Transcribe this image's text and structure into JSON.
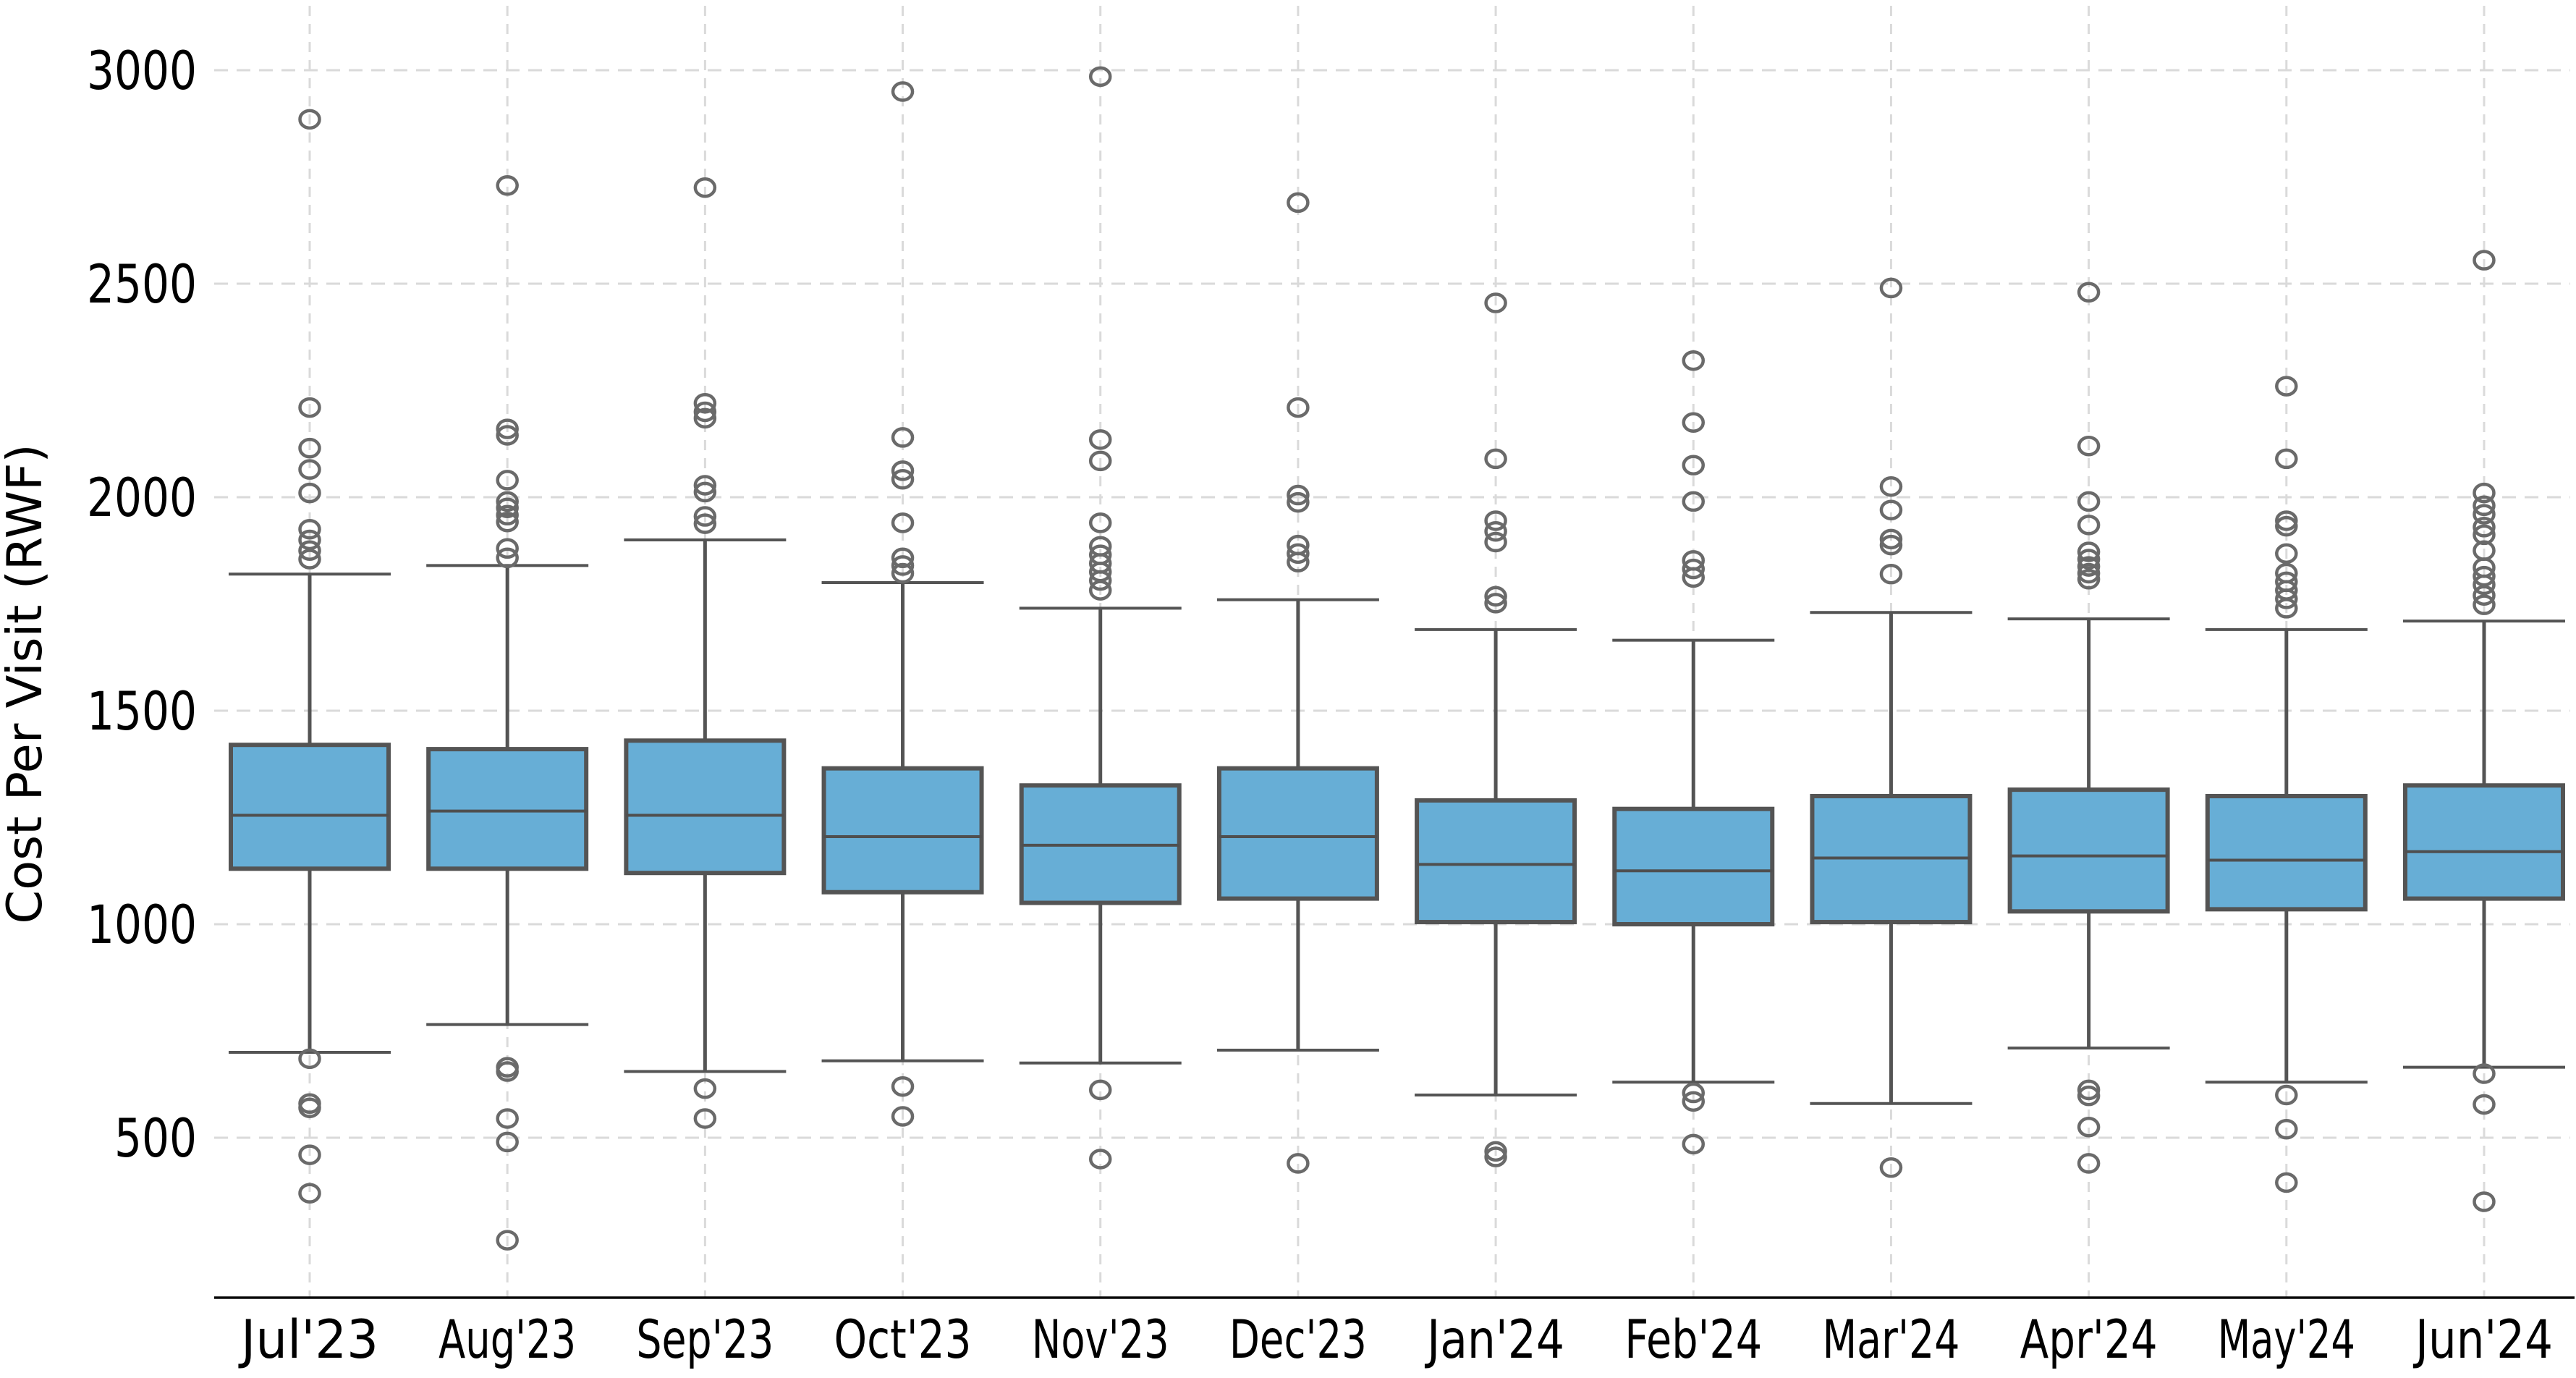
{
  "chart_data": {
    "type": "box",
    "title": "",
    "xlabel": "",
    "ylabel": "Cost Per Visit (RWF)",
    "ylim": [
      120,
      3165
    ],
    "yticks": [
      3000,
      2500,
      2000,
      1500,
      1000,
      500
    ],
    "grid": {
      "horizontal": true,
      "vertical": true,
      "style": "dashed",
      "on": true
    },
    "legend": {
      "visible": false
    },
    "categories": [
      "Jul'23",
      "Aug'23",
      "Sep'23",
      "Oct'23",
      "Nov'23",
      "Dec'23",
      "Jan'24",
      "Feb'24",
      "Mar'24",
      "Apr'24",
      "May'24",
      "Jun'24"
    ],
    "series": [
      {
        "category": "Jul'23",
        "whisker_low": 700,
        "q1": 1130,
        "median": 1255,
        "q3": 1420,
        "whisker_high": 1820,
        "outliers_high": [
          2885,
          2210,
          2115,
          2065,
          2010,
          1925,
          1900,
          1875,
          1855
        ],
        "outliers_low": [
          685,
          580,
          570,
          460,
          370
        ]
      },
      {
        "category": "Aug'23",
        "whisker_low": 765,
        "q1": 1130,
        "median": 1265,
        "q3": 1410,
        "whisker_high": 1840,
        "outliers_high": [
          2730,
          2160,
          2145,
          2040,
          1990,
          1975,
          1958,
          1942,
          1880,
          1858
        ],
        "outliers_low": [
          665,
          655,
          545,
          490,
          260
        ]
      },
      {
        "category": "Sep'23",
        "whisker_low": 655,
        "q1": 1120,
        "median": 1255,
        "q3": 1430,
        "whisker_high": 1900,
        "outliers_high": [
          2725,
          2220,
          2200,
          2185,
          2028,
          2012,
          1955,
          1938
        ],
        "outliers_low": [
          615,
          545
        ]
      },
      {
        "category": "Oct'23",
        "whisker_low": 680,
        "q1": 1075,
        "median": 1205,
        "q3": 1365,
        "whisker_high": 1800,
        "outliers_high": [
          2950,
          2140,
          2062,
          2042,
          1940,
          1858,
          1840,
          1822
        ],
        "outliers_low": [
          620,
          550
        ]
      },
      {
        "category": "Nov'23",
        "whisker_low": 675,
        "q1": 1050,
        "median": 1185,
        "q3": 1325,
        "whisker_high": 1740,
        "outliers_high": [
          2985,
          2135,
          2085,
          1940,
          1885,
          1865,
          1845,
          1825,
          1805,
          1782
        ],
        "outliers_low": [
          612,
          450
        ]
      },
      {
        "category": "Dec'23",
        "whisker_low": 705,
        "q1": 1060,
        "median": 1205,
        "q3": 1365,
        "whisker_high": 1760,
        "outliers_high": [
          2690,
          2210,
          2005,
          1988,
          1888,
          1868,
          1848
        ],
        "outliers_low": [
          440
        ]
      },
      {
        "category": "Jan'24",
        "whisker_low": 600,
        "q1": 1005,
        "median": 1140,
        "q3": 1290,
        "whisker_high": 1690,
        "outliers_high": [
          2455,
          2090,
          1945,
          1920,
          1895,
          1768,
          1752
        ],
        "outliers_low": [
          468,
          455
        ]
      },
      {
        "category": "Feb'24",
        "whisker_low": 630,
        "q1": 1000,
        "median": 1125,
        "q3": 1270,
        "whisker_high": 1665,
        "outliers_high": [
          2320,
          2175,
          2075,
          1990,
          1852,
          1832,
          1812
        ],
        "outliers_low": [
          605,
          585,
          485
        ]
      },
      {
        "category": "Mar'24",
        "whisker_low": 580,
        "q1": 1005,
        "median": 1155,
        "q3": 1300,
        "whisker_high": 1730,
        "outliers_high": [
          2490,
          2025,
          1970,
          1902,
          1888,
          1820
        ],
        "outliers_low": [
          430
        ]
      },
      {
        "category": "Apr'24",
        "whisker_low": 710,
        "q1": 1030,
        "median": 1160,
        "q3": 1315,
        "whisker_high": 1715,
        "outliers_high": [
          2480,
          2120,
          1990,
          1935,
          1872,
          1855,
          1838,
          1822,
          1808
        ],
        "outliers_low": [
          612,
          598,
          525,
          440
        ]
      },
      {
        "category": "May'24",
        "whisker_low": 630,
        "q1": 1035,
        "median": 1150,
        "q3": 1300,
        "whisker_high": 1690,
        "outliers_high": [
          2260,
          2090,
          1945,
          1932,
          1868,
          1822,
          1802,
          1782,
          1762,
          1740
        ],
        "outliers_low": [
          600,
          520,
          395
        ]
      },
      {
        "category": "Jun'24",
        "whisker_low": 665,
        "q1": 1060,
        "median": 1170,
        "q3": 1325,
        "whisker_high": 1710,
        "outliers_high": [
          2555,
          2010,
          1980,
          1960,
          1930,
          1912,
          1875,
          1835,
          1815,
          1795,
          1770,
          1748
        ],
        "outliers_low": [
          650,
          578,
          350
        ]
      }
    ],
    "colors": {
      "box_fill": "#67AED6",
      "box_edge": "#545454",
      "whisker": "#545454",
      "median": "#4F4F4F",
      "outlier_ring": "#6A6A6A",
      "grid_line": "#DADADA",
      "axis_spine": "#0A0A0A",
      "text": "#000000",
      "background": "#FFFFFF"
    }
  }
}
